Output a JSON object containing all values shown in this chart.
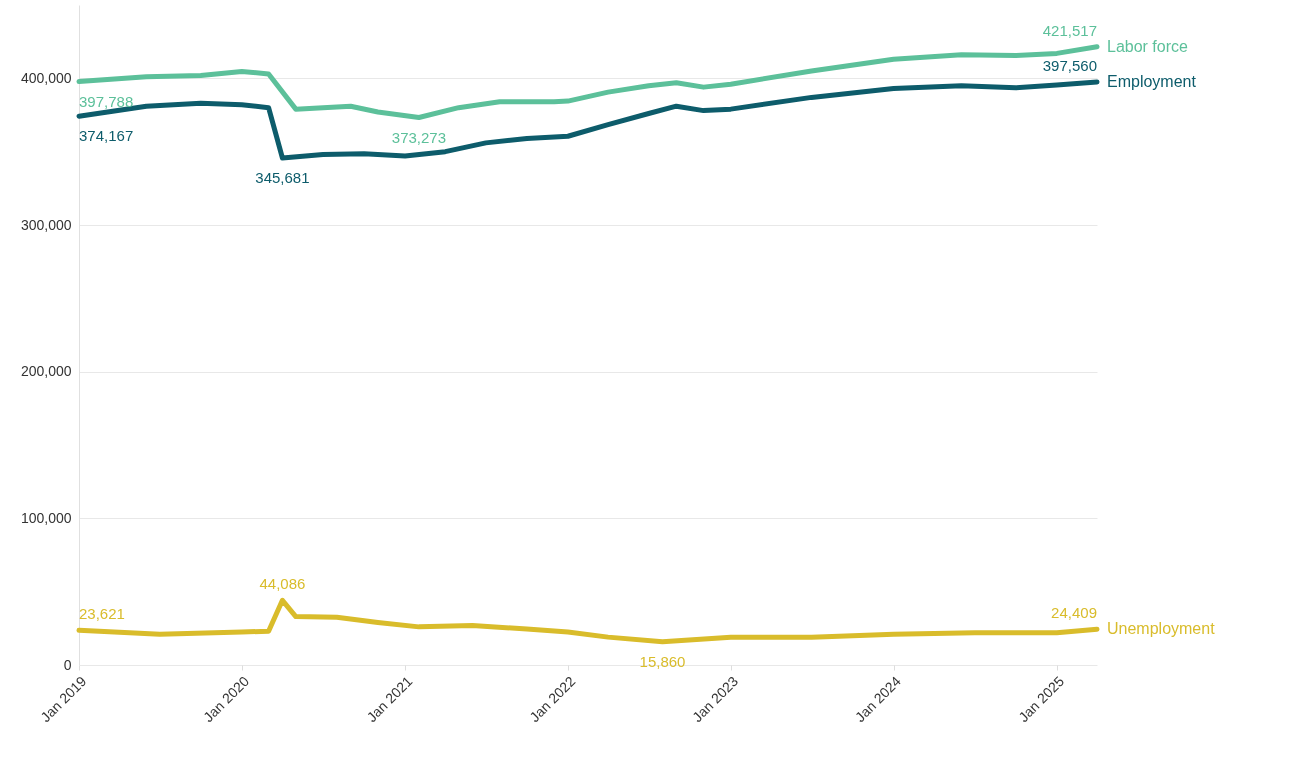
{
  "chart_data": {
    "type": "line",
    "xlim": [
      "2019-01",
      "2025-04"
    ],
    "ylim": [
      0,
      450000
    ],
    "yticks": [
      0,
      {
        "value": 100000,
        "label": "100,000"
      },
      {
        "value": 200000,
        "label": "200,000"
      },
      {
        "value": 300000,
        "label": "300,000"
      },
      {
        "value": 400000,
        "label": "400,000"
      }
    ],
    "xticks": [
      {
        "value": "2019-01",
        "label": "Jan 2019"
      },
      {
        "value": "2020-01",
        "label": "Jan 2020"
      },
      {
        "value": "2021-01",
        "label": "Jan 2021"
      },
      {
        "value": "2022-01",
        "label": "Jan 2022"
      },
      {
        "value": "2023-01",
        "label": "Jan 2023"
      },
      {
        "value": "2024-01",
        "label": "Jan 2024"
      },
      {
        "value": "2025-01",
        "label": "Jan 2025"
      }
    ],
    "grid": "y",
    "line_style": "solid",
    "marker": "none",
    "series": [
      {
        "name": "Labor force",
        "color": "#5cc09a",
        "x": [
          "2019-01",
          "2019-06",
          "2019-10",
          "2020-01",
          "2020-03",
          "2020-05",
          "2020-07",
          "2020-09",
          "2020-11",
          "2021-02",
          "2021-05",
          "2021-08",
          "2021-12",
          "2022-01",
          "2022-04",
          "2022-07",
          "2022-09",
          "2022-11",
          "2023-01",
          "2023-07",
          "2024-01",
          "2024-06",
          "2024-10",
          "2025-01",
          "2025-04"
        ],
        "values": [
          397788,
          401000,
          402000,
          404700,
          403000,
          379000,
          380000,
          381000,
          377000,
          373273,
          380000,
          384000,
          384000,
          384500,
          390600,
          395000,
          397000,
          394000,
          396000,
          405000,
          413000,
          416000,
          415500,
          417000,
          421517
        ]
      },
      {
        "name": "Employment",
        "color": "#0d5c6b",
        "x": [
          "2019-01",
          "2019-06",
          "2019-10",
          "2020-01",
          "2020-03",
          "2020-04",
          "2020-07",
          "2020-10",
          "2021-01",
          "2021-04",
          "2021-07",
          "2021-10",
          "2022-01",
          "2022-04",
          "2022-07",
          "2022-09",
          "2022-11",
          "2023-01",
          "2023-07",
          "2024-01",
          "2024-06",
          "2024-10",
          "2025-01",
          "2025-04"
        ],
        "values": [
          374167,
          381000,
          383000,
          382000,
          380000,
          345681,
          348000,
          348500,
          347000,
          350000,
          356000,
          359000,
          360500,
          368500,
          376000,
          381000,
          378000,
          379000,
          387000,
          393000,
          395000,
          393500,
          395500,
          397560
        ]
      },
      {
        "name": "Unemployment",
        "color": "#d9bc2b",
        "x": [
          "2019-01",
          "2019-07",
          "2020-01",
          "2020-03",
          "2020-04",
          "2020-05",
          "2020-08",
          "2020-11",
          "2021-02",
          "2021-06",
          "2021-10",
          "2022-01",
          "2022-04",
          "2022-08",
          "2023-01",
          "2023-07",
          "2024-01",
          "2024-07",
          "2025-01",
          "2025-04"
        ],
        "values": [
          23621,
          21000,
          22500,
          23000,
          44086,
          33000,
          32500,
          29000,
          26000,
          27000,
          24500,
          22500,
          19000,
          15860,
          19000,
          19000,
          21000,
          22000,
          22000,
          24409
        ]
      }
    ],
    "annotations": [
      {
        "text": "397,788",
        "x": "2019-01",
        "y": 397788
      },
      {
        "text": "373,273",
        "x": "2021-02",
        "y": 373273
      },
      {
        "text": "421,517",
        "x": "2025-04",
        "y": 421517
      },
      {
        "text": "374,167",
        "x": "2019-01",
        "y": 374167
      },
      {
        "text": "345,681",
        "x": "2020-04",
        "y": 345681
      },
      {
        "text": "397,560",
        "x": "2025-04",
        "y": 397560
      },
      {
        "text": "23,621",
        "x": "2019-01",
        "y": 23621
      },
      {
        "text": "44,086",
        "x": "2020-04",
        "y": 44086
      },
      {
        "text": "15,860",
        "x": "2022-08",
        "y": 15860
      },
      {
        "text": "24,409",
        "x": "2025-04",
        "y": 24409
      }
    ]
  }
}
